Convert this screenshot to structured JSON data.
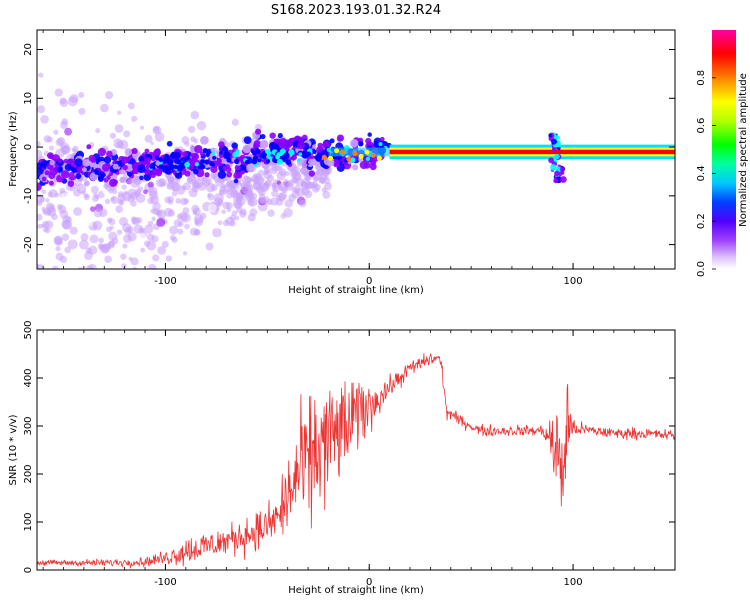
{
  "figure": {
    "title": "S168.2023.193.01.32.R24"
  },
  "chart_data": [
    {
      "type": "heatmap",
      "title": "",
      "xlabel": "Height of straight line (km)",
      "ylabel": "Frequency (Hz)",
      "xlim": [
        -163,
        150
      ],
      "ylim": [
        -25,
        24
      ],
      "x_ticks": [
        -100,
        0,
        100
      ],
      "y_ticks": [
        -20,
        -10,
        0,
        10,
        20
      ],
      "grid": false,
      "colorbar": {
        "label": "Normalized spectral amplitude",
        "range": [
          0,
          1
        ],
        "ticks": [
          0.0,
          0.2,
          0.4,
          0.6,
          0.8
        ],
        "tick_labels": [
          "0.0",
          "0.2",
          "0.4",
          "0.6",
          "0.8"
        ],
        "colormap": [
          "#ffffff",
          "#c8a0ff",
          "#8c00ff",
          "#0000ff",
          "#00ffff",
          "#00ff00",
          "#ffff00",
          "#ff8000",
          "#ff0000",
          "#ff00a0"
        ]
      },
      "features": [
        {
          "name": "carrier",
          "x_range": [
            10,
            150
          ],
          "frequency": -1,
          "amplitude": 1.0
        },
        {
          "name": "diffuse scatter",
          "x_range": [
            -163,
            -20
          ],
          "frequency_center": -5,
          "amplitude": 0.3
        },
        {
          "name": "disturbance",
          "x": 92,
          "frequency_range": [
            -7,
            3
          ]
        }
      ]
    },
    {
      "type": "line",
      "title": "",
      "xlabel": "Height of straight line (km)",
      "ylabel": "SNR (10 * v/v)",
      "xlim": [
        -163,
        150
      ],
      "ylim": [
        0,
        500
      ],
      "x_ticks": [
        -100,
        0,
        100
      ],
      "y_ticks": [
        0,
        100,
        200,
        300,
        400,
        500
      ],
      "grid": false,
      "series": [
        {
          "color": "#ee3333",
          "x": [
            -163,
            -150,
            -130,
            -110,
            -100,
            -90,
            -80,
            -70,
            -60,
            -50,
            -45,
            -40,
            -35,
            -30,
            -25,
            -20,
            -15,
            -10,
            -5,
            0,
            5,
            10,
            15,
            20,
            25,
            30,
            35,
            38,
            45,
            55,
            65,
            75,
            85,
            88,
            92,
            95,
            97,
            100,
            110,
            120,
            130,
            140,
            150
          ],
          "y": [
            15,
            15,
            15,
            17,
            25,
            40,
            50,
            60,
            75,
            90,
            110,
            150,
            200,
            220,
            250,
            270,
            290,
            300,
            330,
            340,
            360,
            380,
            400,
            420,
            430,
            440,
            440,
            330,
            310,
            290,
            290,
            290,
            290,
            280,
            240,
            200,
            310,
            295,
            290,
            285,
            285,
            283,
            280
          ],
          "spread": [
            8,
            8,
            10,
            12,
            20,
            40,
            40,
            40,
            50,
            55,
            70,
            120,
            150,
            170,
            180,
            170,
            140,
            120,
            100,
            70,
            40,
            30,
            25,
            20,
            20,
            20,
            20,
            20,
            15,
            15,
            15,
            15,
            15,
            40,
            130,
            170,
            150,
            20,
            15,
            15,
            15,
            15,
            15
          ]
        }
      ]
    }
  ]
}
